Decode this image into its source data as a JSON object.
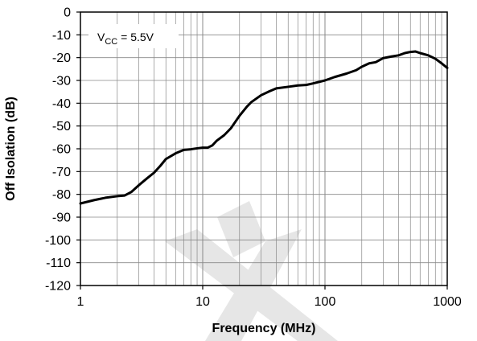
{
  "chart_data": {
    "type": "line",
    "title": "",
    "xlabel": "Frequency (MHz)",
    "ylabel": "Off Isolation (dB)",
    "x_scale": "log",
    "xlim": [
      1,
      1000
    ],
    "ylim": [
      -120,
      0
    ],
    "grid": true,
    "x_tick_labels": [
      "1",
      "10",
      "100",
      "1000"
    ],
    "y_tick_labels": [
      "0",
      "-10",
      "-20",
      "-30",
      "-40",
      "-50",
      "-60",
      "-70",
      "-80",
      "-90",
      "-100",
      "-110",
      "-120"
    ],
    "annotation": {
      "prefix": "V",
      "subscript": "CC",
      "suffix": " = 5.5V"
    },
    "colors": {
      "line": "#000000",
      "grid": "#888888",
      "watermark": "#e6e6e6"
    },
    "series": [
      {
        "x": [
          1,
          1.3,
          1.6,
          2.0,
          2.3,
          2.6,
          3.0,
          3.5,
          4.0,
          4.5,
          5.0,
          6.0,
          7.0,
          8.0,
          9.0,
          10,
          11,
          12,
          13,
          15,
          17,
          20,
          23,
          25,
          30,
          35,
          40,
          50,
          60,
          70,
          80,
          100,
          120,
          150,
          180,
          200,
          230,
          260,
          300,
          350,
          400,
          450,
          500,
          550,
          600,
          700,
          800,
          900,
          1000
        ],
        "y": [
          -84,
          -82.5,
          -81.5,
          -80.8,
          -80.5,
          -79,
          -76,
          -73,
          -70.5,
          -67.5,
          -64.5,
          -62,
          -60.5,
          -60.2,
          -59.8,
          -59.5,
          -59.5,
          -58.5,
          -56.5,
          -54,
          -51,
          -45.5,
          -41.5,
          -39.5,
          -36.5,
          -34.8,
          -33.5,
          -32.8,
          -32.2,
          -32,
          -31.3,
          -30,
          -28.5,
          -27,
          -25.5,
          -24,
          -22.5,
          -22,
          -20.2,
          -19.5,
          -19,
          -18,
          -17.5,
          -17.3,
          -18,
          -19,
          -20.5,
          -22.5,
          -24.5
        ]
      }
    ]
  }
}
